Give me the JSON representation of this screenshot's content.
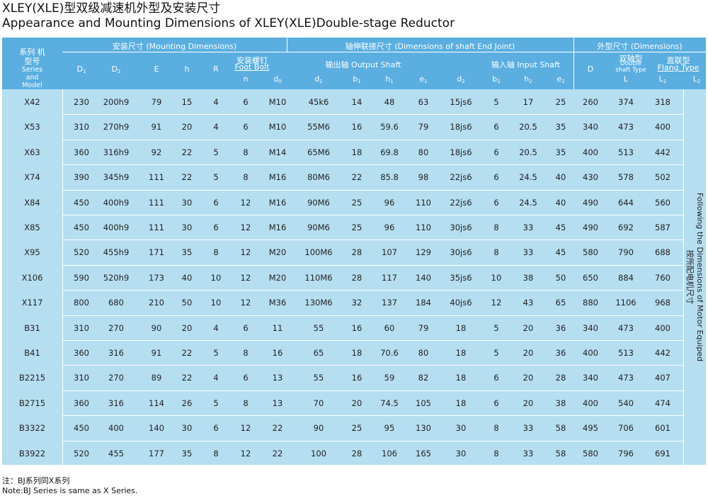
{
  "title_cn": "XLEY(XLE)型双级减速机外型及安装尺寸",
  "title_en": "Appearance and Mounting Dimensions of XLEY(XLE)Double-stage Reductor",
  "header": {
    "model_cn": "系列 机型号",
    "model_en": "Series and Model",
    "mounting": "安装尺寸   (Mounting Dimensions)",
    "shaft_joint": "轴伸联接尺寸    (Dimensions of shaft End Joint)",
    "outline": "外型尺寸    (Dimensions)",
    "foot_bolt_cn": "安装螺钉",
    "foot_bolt_en": "Foot Bolt",
    "output_shaft": "输出轴  Output Shaft",
    "input_shaft": "输入轴  Input Shaft",
    "double_cn": "双轴型",
    "double_en": "Double shaft Type",
    "flang_cn": "直联型",
    "flang_en": "Flang Type",
    "cols": {
      "D1": "D1",
      "D2": "D2",
      "E": "E",
      "h": "h",
      "R": "R",
      "n": "n",
      "d0": "d0",
      "d1": "d1",
      "b1": "b1",
      "h1": "h1",
      "e1": "e1",
      "d2": "d2",
      "b2": "b2",
      "h2": "h2",
      "e2": "e2",
      "D": "D",
      "L": "L",
      "L1": "L1",
      "L2": "L2"
    }
  },
  "rows": [
    [
      "X42",
      "230",
      "200h9",
      "79",
      "15",
      "4",
      "6",
      "M10",
      "45k6",
      "14",
      "48",
      "63",
      "15js6",
      "5",
      "17",
      "25",
      "260",
      "374",
      "318"
    ],
    [
      "X53",
      "310",
      "270h9",
      "91",
      "20",
      "4",
      "6",
      "M10",
      "55M6",
      "16",
      "59.6",
      "79",
      "18js6",
      "6",
      "20.5",
      "35",
      "340",
      "473",
      "400"
    ],
    [
      "X63",
      "360",
      "316h9",
      "92",
      "22",
      "5",
      "8",
      "M14",
      "65M6",
      "18",
      "69.8",
      "80",
      "18js6",
      "6",
      "20.5",
      "35",
      "400",
      "513",
      "442"
    ],
    [
      "X74",
      "390",
      "345h9",
      "111",
      "22",
      "5",
      "8",
      "M16",
      "80M6",
      "22",
      "85.8",
      "98",
      "22js6",
      "6",
      "24.5",
      "40",
      "430",
      "578",
      "502"
    ],
    [
      "X84",
      "450",
      "400h9",
      "111",
      "30",
      "6",
      "12",
      "M16",
      "90M6",
      "25",
      "96",
      "110",
      "22js6",
      "6",
      "24.5",
      "40",
      "490",
      "644",
      "560"
    ],
    [
      "X85",
      "450",
      "400h9",
      "111",
      "30",
      "6",
      "12",
      "M16",
      "90M6",
      "25",
      "96",
      "110",
      "30js6",
      "8",
      "33",
      "45",
      "490",
      "692",
      "587"
    ],
    [
      "X95",
      "520",
      "455h9",
      "171",
      "35",
      "8",
      "12",
      "M20",
      "100M6",
      "28",
      "107",
      "129",
      "30js6",
      "8",
      "33",
      "45",
      "580",
      "790",
      "688"
    ],
    [
      "X106",
      "590",
      "520h9",
      "173",
      "40",
      "10",
      "12",
      "M20",
      "110M6",
      "28",
      "117",
      "140",
      "35js6",
      "10",
      "38",
      "50",
      "650",
      "884",
      "760"
    ],
    [
      "X117",
      "800",
      "680",
      "210",
      "50",
      "10",
      "12",
      "M36",
      "130M6",
      "32",
      "137",
      "184",
      "40js6",
      "12",
      "43",
      "65",
      "880",
      "1106",
      "968"
    ],
    [
      "B31",
      "310",
      "270",
      "90",
      "20",
      "4",
      "6",
      "11",
      "55",
      "16",
      "60",
      "79",
      "18",
      "5",
      "20",
      "36",
      "340",
      "473",
      "400"
    ],
    [
      "B41",
      "360",
      "316",
      "91",
      "22",
      "5",
      "8",
      "16",
      "65",
      "18",
      "70.6",
      "80",
      "18",
      "5",
      "20",
      "36",
      "400",
      "513",
      "442"
    ],
    [
      "B2215",
      "310",
      "270",
      "89",
      "22",
      "4",
      "6",
      "13",
      "55",
      "16",
      "59",
      "82",
      "18",
      "6",
      "20",
      "28",
      "340",
      "473",
      "407"
    ],
    [
      "B2715",
      "360",
      "316",
      "114",
      "26",
      "5",
      "8",
      "13",
      "70",
      "20",
      "74.5",
      "105",
      "18",
      "6",
      "20",
      "38",
      "400",
      "540",
      "474"
    ],
    [
      "B3322",
      "450",
      "400",
      "140",
      "30",
      "6",
      "12",
      "22",
      "90",
      "25",
      "95",
      "130",
      "30",
      "8",
      "33",
      "58",
      "495",
      "706",
      "601"
    ],
    [
      "B3922",
      "520",
      "455",
      "177",
      "35",
      "8",
      "12",
      "22",
      "100",
      "28",
      "106",
      "165",
      "30",
      "8",
      "33",
      "58",
      "580",
      "796",
      "691"
    ]
  ],
  "side_note_en": "Following the Dimensions of Motor Equiped",
  "side_note_cn": "按所配电机尺寸",
  "note_cn": "注：BJ系列同X系列",
  "note_en": "Note:BJ Series is same as X Series."
}
